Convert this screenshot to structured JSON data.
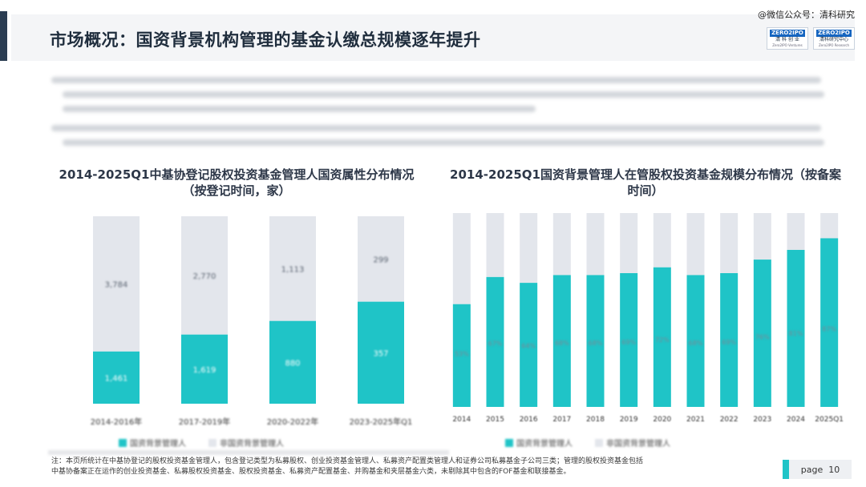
{
  "header": {
    "title": "市场概况：国资背景机构管理的基金认缴总规模逐年提升",
    "watermark": "@微信公众号：清科研究",
    "logos": [
      {
        "mark": "ZERO2IPO",
        "sub": "清 科 创 业",
        "sub2": "Zero2IPO Ventures"
      },
      {
        "mark": "ZERO2IPO",
        "sub": "清科研究中心",
        "sub2": "Zero2IPO Research"
      }
    ]
  },
  "colors": {
    "accent": "#1fc4c7",
    "background_bar": "#e3e6ec",
    "title_bar": "#2b3d52"
  },
  "chart_data": [
    {
      "type": "bar",
      "title": "2014-2025Q1中基协登记股权投资基金管理人国资属性分布情况（按登记时间，家）",
      "categories": [
        "2014-2016年",
        "2017-2019年",
        "2020-2022年",
        "2023-2025年Q1"
      ],
      "series": [
        {
          "values": [
            1461,
            1619,
            880,
            357
          ]
        },
        {
          "values": [
            3784,
            2770,
            1113,
            299
          ]
        }
      ],
      "stacked": true,
      "normalized": true,
      "shares_percent": [
        27.9,
        36.9,
        44.2,
        54.4
      ]
    },
    {
      "type": "bar",
      "title": "2014-2025Q1国资背景管理人在管股权投资基金规模分布情况（按备案时间）",
      "categories": [
        "2014",
        "2015",
        "2016",
        "2017",
        "2018",
        "2019",
        "2020",
        "2021",
        "2022",
        "2023",
        "2024",
        "2025Q1"
      ],
      "series": [
        {
          "values": [
            53,
            67,
            64,
            68,
            68,
            69,
            72,
            68,
            69,
            76,
            81,
            87
          ]
        }
      ],
      "stacked": true,
      "normalized": true,
      "value_labels": [
        "53%",
        "67%",
        "64%",
        "68%",
        "68%",
        "69%",
        "72%",
        "68%",
        "69%",
        "76%",
        "81%",
        "87%"
      ]
    }
  ],
  "legend_left": [
    "国资背景管理人",
    "非国资背景管理人"
  ],
  "legend_right": [
    "国资背景管理人",
    "非国资背景管理人"
  ],
  "notes": {
    "line1": "注：本页所统计在中基协登记的股权投资基金管理人，包含登记类型为私募股权、创业投资基金管理人、私募资产配置类管理人和证券公司私募基金子公司三类；管理的股权投资基金包括",
    "line2": "中基协备案正在运作的创业投资基金、私募股权投资基金、股权投资基金、私募资产配置基金、并购基金和夹层基金六类，未剔除其中包含的FOF基金和联接基金。"
  },
  "page": {
    "label": "page",
    "number": "10"
  }
}
